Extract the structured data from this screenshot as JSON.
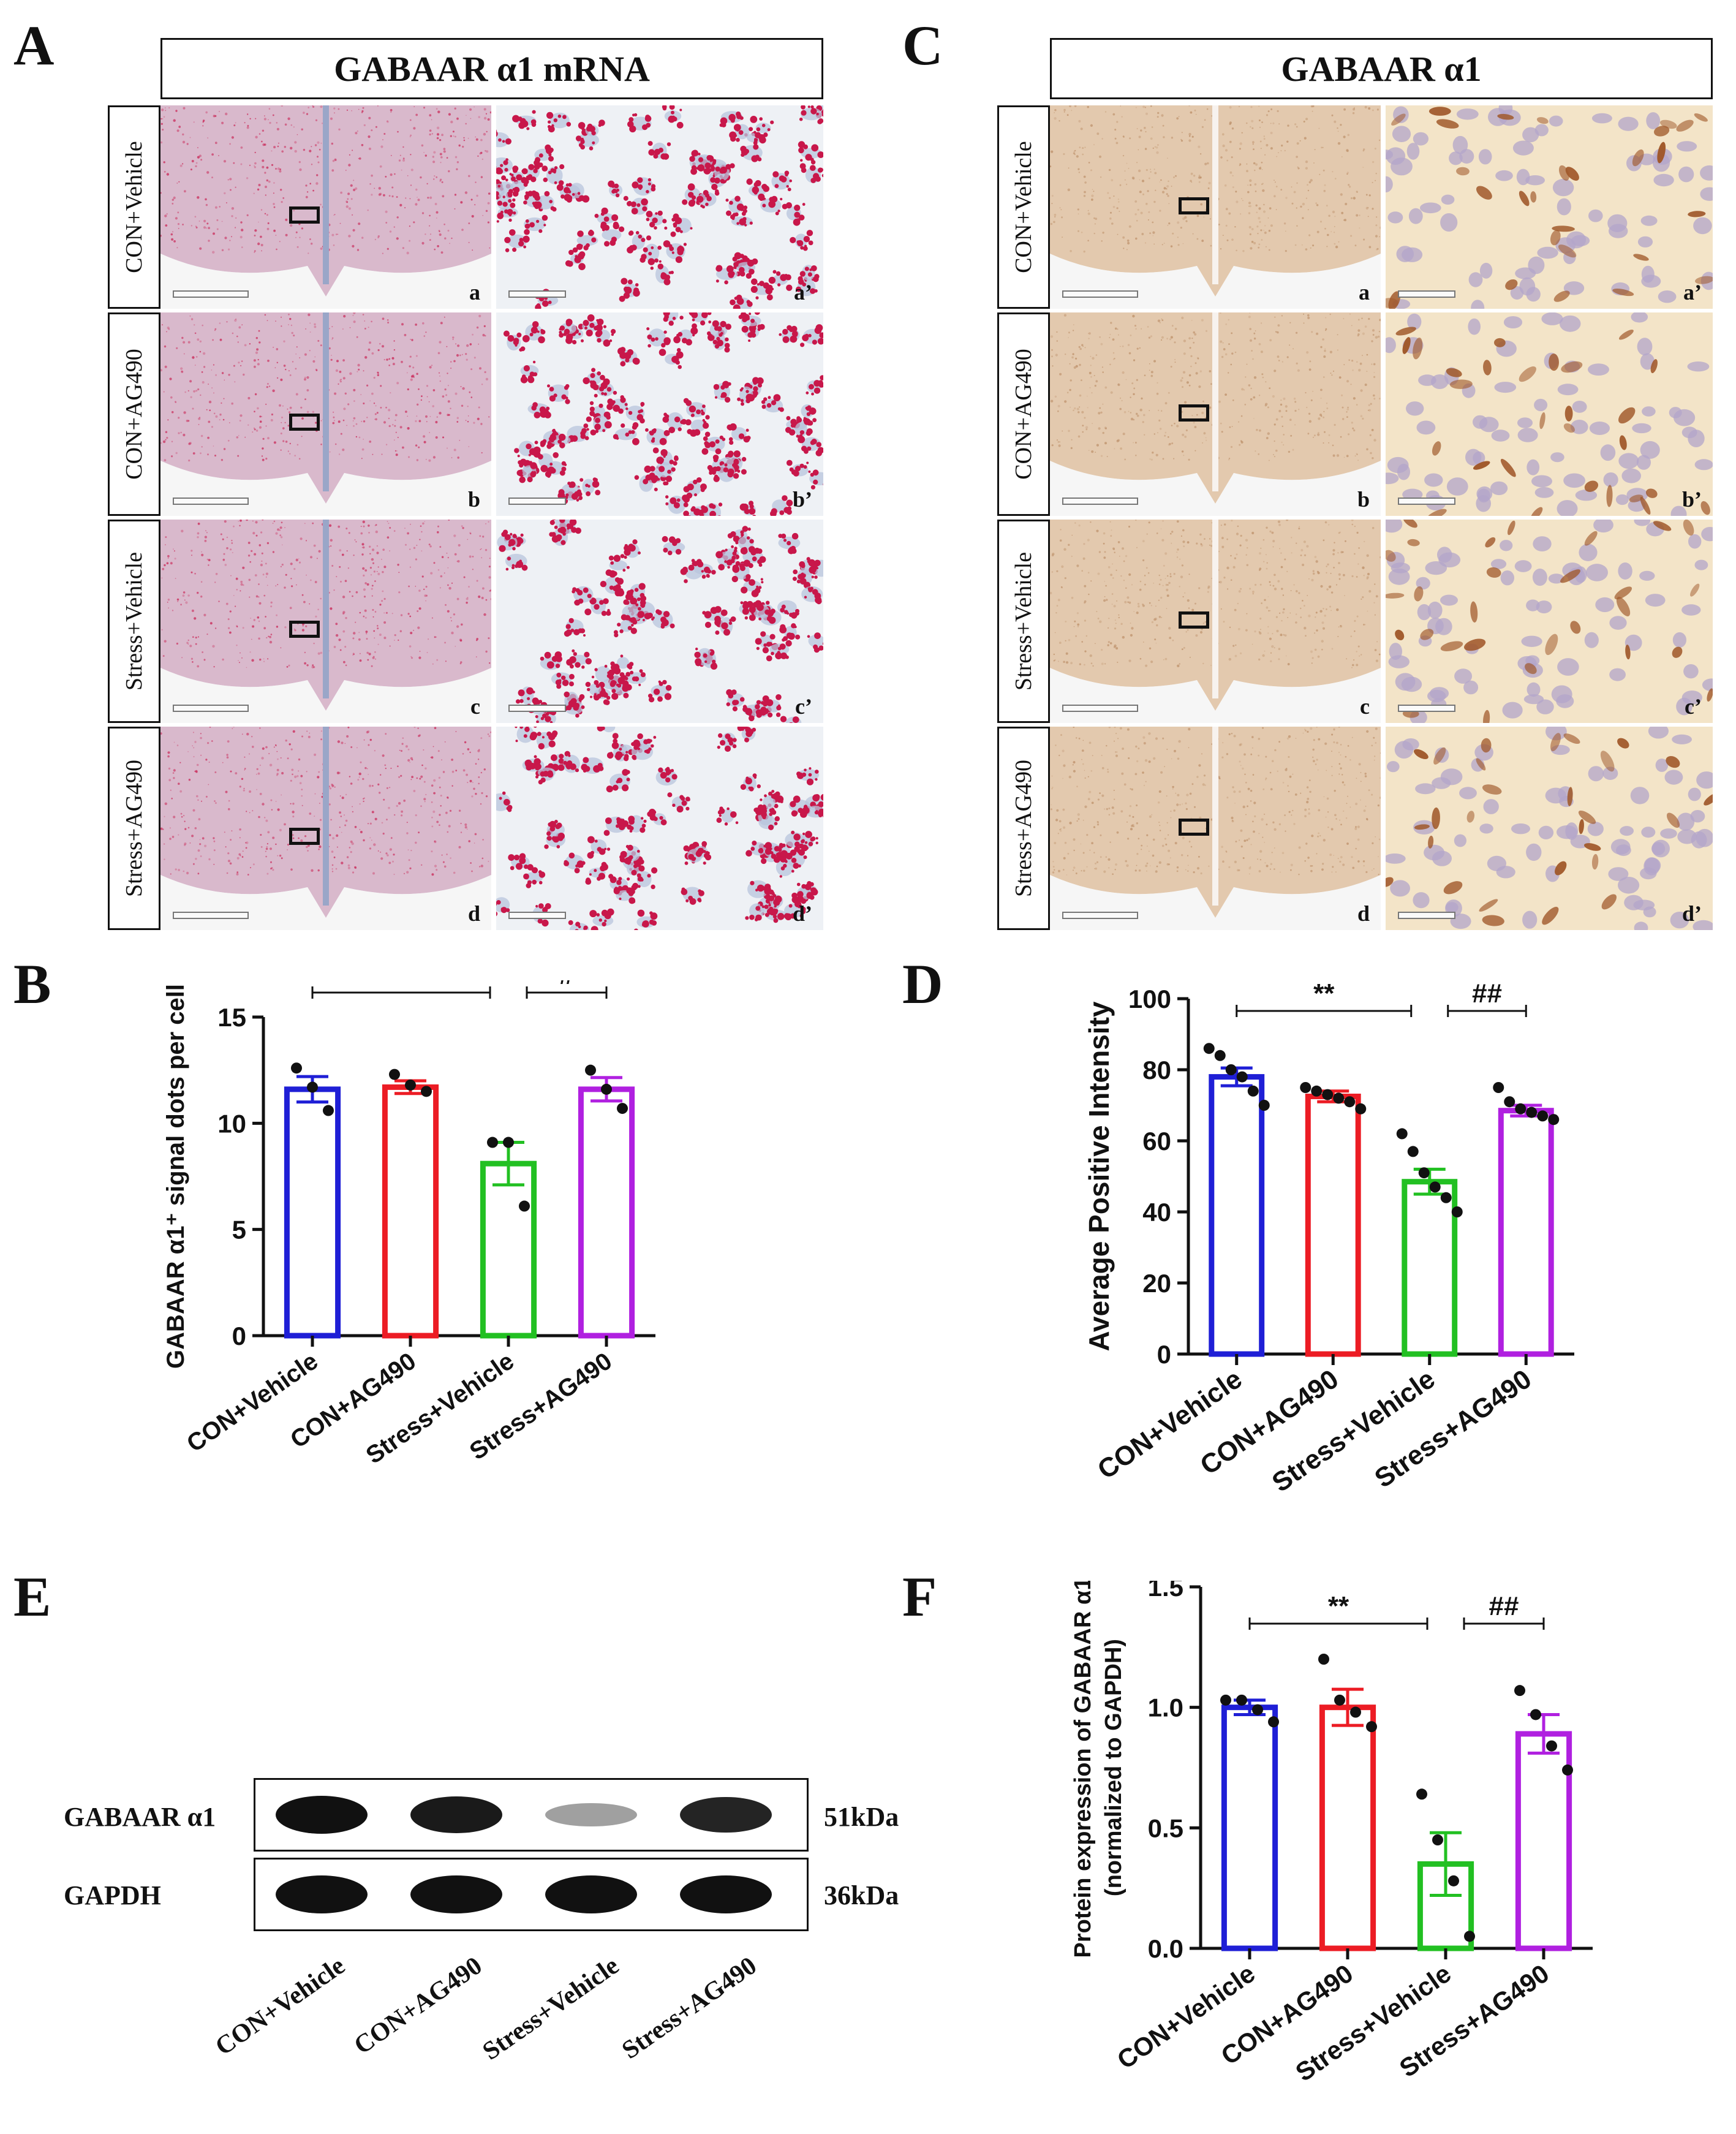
{
  "panels": {
    "A": {
      "letter": "A",
      "title": "GABAAR α1 mRNA",
      "rows": [
        {
          "group": "CON+Vehicle",
          "left_label": "a",
          "right_label": "a’"
        },
        {
          "group": "CON+AG490",
          "left_label": "b",
          "right_label": "b’"
        },
        {
          "group": "Stress+Vehicle",
          "left_label": "c",
          "right_label": "c’"
        },
        {
          "group": "Stress+AG490",
          "left_label": "d",
          "right_label": "d’"
        }
      ]
    },
    "C": {
      "letter": "C",
      "title": "GABAAR α1",
      "rows": [
        {
          "group": "CON+Vehicle",
          "left_label": "a",
          "right_label": "a’"
        },
        {
          "group": "CON+AG490",
          "left_label": "b",
          "right_label": "b’"
        },
        {
          "group": "Stress+Vehicle",
          "left_label": "c",
          "right_label": "c’"
        },
        {
          "group": "Stress+AG490",
          "left_label": "d",
          "right_label": "d’"
        }
      ]
    },
    "B": {
      "letter": "B"
    },
    "D": {
      "letter": "D"
    },
    "E": {
      "letter": "E",
      "band_rows": [
        {
          "protein": "GABAAR α1",
          "size": "51kDa",
          "intensities": [
            1.0,
            0.95,
            0.25,
            0.9
          ]
        },
        {
          "protein": "GAPDH",
          "size": "36kDa",
          "intensities": [
            1.0,
            1.0,
            1.0,
            1.0
          ]
        }
      ],
      "lanes": [
        "CON+Vehicle",
        "CON+AG490",
        "Stress+Vehicle",
        "Stress+AG490"
      ]
    },
    "F": {
      "letter": "F"
    }
  },
  "colors": {
    "CON+Vehicle": "#1f1fd6",
    "CON+AG490": "#ec1c24",
    "Stress+Vehicle": "#22c022",
    "Stress+AG490": "#b020e0",
    "ish_signal": "#c8174a",
    "ihc_stain": "#a0582a"
  },
  "chart_data": [
    {
      "id": "B",
      "type": "bar",
      "categories": [
        "CON+Vehicle",
        "CON+AG490",
        "Stress+Vehicle",
        "Stress+AG490"
      ],
      "values": [
        11.6,
        11.7,
        8.1,
        11.6
      ],
      "sem": [
        0.6,
        0.3,
        1.0,
        0.55
      ],
      "points": [
        [
          12.6,
          11.7,
          10.6
        ],
        [
          12.3,
          11.8,
          11.5
        ],
        [
          9.1,
          9.1,
          6.1
        ],
        [
          12.5,
          11.6,
          10.7
        ]
      ],
      "ylabel": "GABAAR α1⁺ signal dots per cell",
      "ylim": [
        0,
        15
      ],
      "yticks": [
        0,
        5,
        10,
        15
      ],
      "significance": [
        {
          "from": 0,
          "to": 2,
          "label": "*"
        },
        {
          "from": 2,
          "to": 3,
          "label": "#"
        }
      ]
    },
    {
      "id": "D",
      "type": "bar",
      "categories": [
        "CON+Vehicle",
        "CON+AG490",
        "Stress+Vehicle",
        "Stress+AG490"
      ],
      "values": [
        78,
        72.5,
        48.5,
        68.5
      ],
      "sem": [
        2.5,
        1.5,
        3.5,
        1.5
      ],
      "points": [
        [
          86,
          84,
          80,
          78,
          74,
          70
        ],
        [
          75,
          74,
          73,
          72,
          71,
          69
        ],
        [
          62,
          57,
          51,
          47,
          44,
          40
        ],
        [
          75,
          71,
          69,
          68,
          67,
          66
        ]
      ],
      "ylabel": "Average Positive Intensity",
      "ylim": [
        0,
        100
      ],
      "yticks": [
        0,
        20,
        40,
        60,
        80,
        100
      ],
      "significance": [
        {
          "from": 0,
          "to": 2,
          "label": "**"
        },
        {
          "from": 2,
          "to": 3,
          "label": "##"
        }
      ]
    },
    {
      "id": "F",
      "type": "bar",
      "categories": [
        "CON+Vehicle",
        "CON+AG490",
        "Stress+Vehicle",
        "Stress+AG490"
      ],
      "values": [
        1.0,
        1.0,
        0.35,
        0.89
      ],
      "sem": [
        0.03,
        0.075,
        0.13,
        0.08
      ],
      "points": [
        [
          1.03,
          1.03,
          0.99,
          0.94
        ],
        [
          1.2,
          1.03,
          0.98,
          0.92
        ],
        [
          0.64,
          0.45,
          0.28,
          0.05
        ],
        [
          1.07,
          0.97,
          0.84,
          0.74
        ]
      ],
      "ylabel": "Protein expression of GABAAR α1",
      "ylabel2": "(normalized to GAPDH)",
      "ylim": [
        0,
        1.5
      ],
      "yticks": [
        0.0,
        0.5,
        1.0,
        1.5
      ],
      "ytick_labels": [
        "0.0",
        "0.5",
        "1.0",
        "1.5"
      ],
      "significance": [
        {
          "from": 0,
          "to": 2,
          "label": "**"
        },
        {
          "from": 2,
          "to": 3,
          "label": "##"
        }
      ]
    }
  ]
}
